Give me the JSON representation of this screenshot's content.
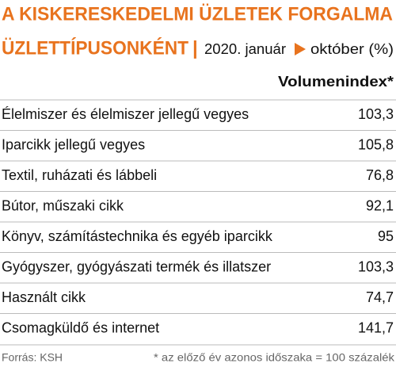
{
  "header": {
    "title": "A KISKERESKEDELMI ÜZLETEK FORGALMA",
    "subtitle": "ÜZLETTÍPUSONKÉNT",
    "separator": "|",
    "period_start": "2020. január",
    "period_end": "október (%)"
  },
  "table": {
    "column_header": "Volumenindex*",
    "rows": [
      [
        "Élelmiszer és élelmiszer jellegű vegyes",
        "103,3"
      ],
      [
        "Iparcikk jellegű vegyes",
        "105,8"
      ],
      [
        "Textil, ruházati és lábbeli",
        "76,8"
      ],
      [
        "Bútor, műszaki cikk",
        "92,1"
      ],
      [
        "Könyv, számítástechnika és egyéb iparcikk",
        "95"
      ],
      [
        "Gyógyszer, gyógyászati termék és illatszer",
        "103,3"
      ],
      [
        "Használt cikk",
        "74,7"
      ],
      [
        "Csomagküldő és internet",
        "141,7"
      ]
    ]
  },
  "footer": {
    "source": "Forrás: KSH",
    "note": "* az előző év azonos időszaka = 100 százalék"
  }
}
